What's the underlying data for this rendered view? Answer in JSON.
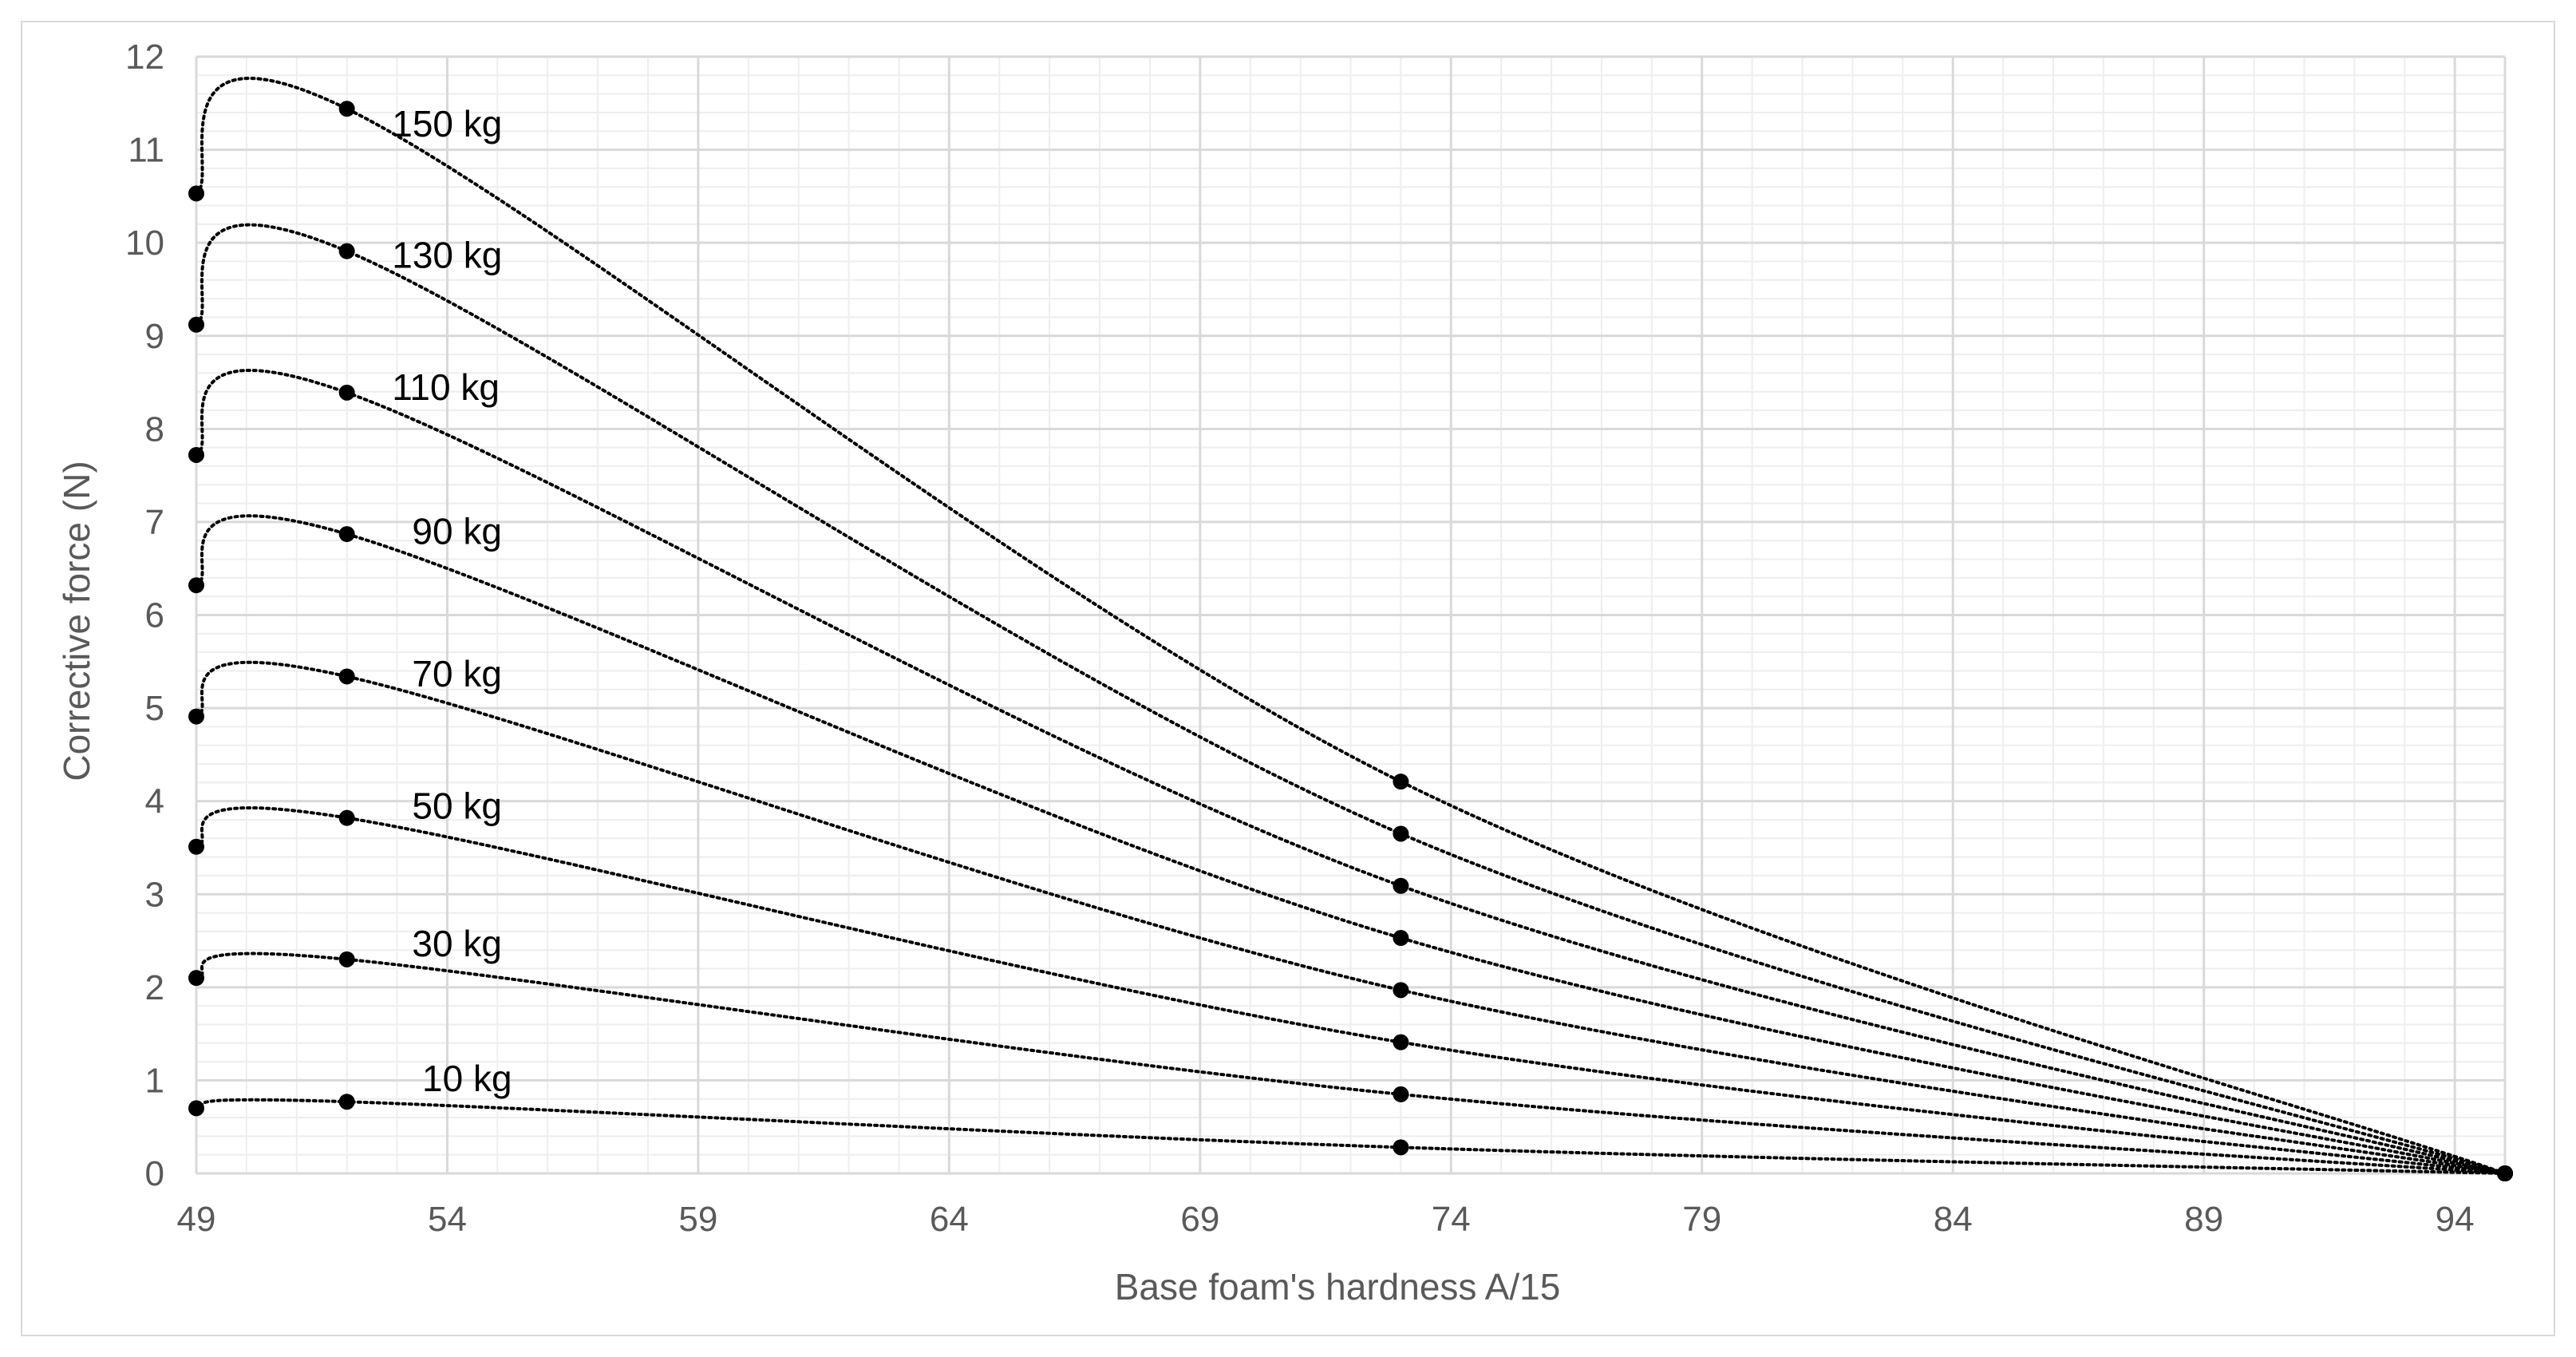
{
  "chart_data": {
    "type": "scatter",
    "title": "",
    "xlabel": "Base foam's hardness A/15",
    "ylabel": "Corrective force (N)",
    "xlim": [
      49,
      95
    ],
    "ylim": [
      0,
      12
    ],
    "x_ticks": [
      "49",
      "54",
      "59",
      "64",
      "69",
      "74",
      "79",
      "84",
      "89",
      "94"
    ],
    "y_ticks": [
      "0",
      "1",
      "2",
      "3",
      "4",
      "5",
      "6",
      "7",
      "8",
      "9",
      "10",
      "11",
      "12"
    ],
    "grid": true,
    "line_style": "dotted smoothed",
    "colors": {
      "series": "#000000",
      "grid_major": "#d9d9d9",
      "grid_minor": "#eeeeee",
      "axis_text": "#595959"
    },
    "series": [
      {
        "name": "10 kg",
        "label_pos": [
          53.5,
          1.02
        ],
        "x": [
          49,
          52,
          73,
          95
        ],
        "y": [
          0.7,
          0.77,
          0.28,
          0
        ]
      },
      {
        "name": "30 kg",
        "label_pos": [
          53.3,
          2.47
        ],
        "x": [
          49,
          52,
          73,
          95
        ],
        "y": [
          2.1,
          2.3,
          0.85,
          0
        ]
      },
      {
        "name": "50 kg",
        "label_pos": [
          53.3,
          3.95
        ],
        "x": [
          49,
          52,
          73,
          95
        ],
        "y": [
          3.51,
          3.82,
          1.41,
          0
        ]
      },
      {
        "name": "70 kg",
        "label_pos": [
          53.3,
          5.37
        ],
        "x": [
          49,
          52,
          73,
          95
        ],
        "y": [
          4.91,
          5.34,
          1.97,
          0
        ]
      },
      {
        "name": "90 kg",
        "label_pos": [
          53.3,
          6.9
        ],
        "x": [
          49,
          52,
          73,
          95
        ],
        "y": [
          6.32,
          6.87,
          2.53,
          0
        ]
      },
      {
        "name": "110 kg",
        "label_pos": [
          52.9,
          8.45
        ],
        "x": [
          49,
          52,
          73,
          95
        ],
        "y": [
          7.72,
          8.39,
          3.09,
          0
        ]
      },
      {
        "name": "130 kg",
        "label_pos": [
          52.9,
          9.87
        ],
        "x": [
          49,
          52,
          73,
          95
        ],
        "y": [
          9.12,
          9.91,
          3.65,
          0
        ]
      },
      {
        "name": "150 kg",
        "label_pos": [
          52.9,
          11.28
        ],
        "x": [
          49,
          52,
          73,
          95
        ],
        "y": [
          10.53,
          11.44,
          4.21,
          0
        ]
      }
    ]
  }
}
